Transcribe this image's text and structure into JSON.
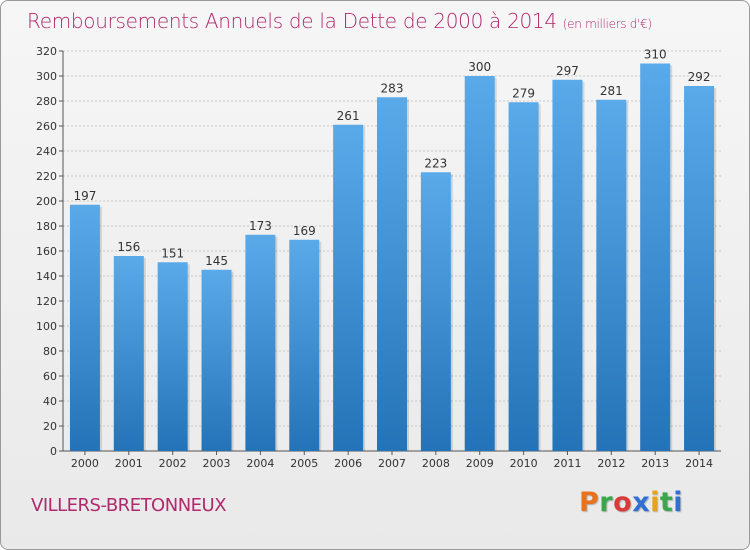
{
  "header": {
    "title": "Remboursements Annuels de la Dette de 2000 à 2014",
    "subtitle": "(en milliers d'€)"
  },
  "footer": {
    "commune": "VILLERS-BRETONNEUX",
    "logo_text": "Proxiti",
    "logo_colors": [
      "#e8731c",
      "#3aa84a",
      "#d93a3a",
      "#2f6fd6",
      "#e8a31c",
      "#3aa84a",
      "#2f6fd6"
    ]
  },
  "colors": {
    "title": "#b0296e",
    "bar_top": "#5aaaea",
    "bar_bottom": "#2473b8",
    "grid": "#c8c8c8"
  },
  "chart_data": {
    "type": "bar",
    "title": "Remboursements Annuels de la Dette de 2000 à 2014",
    "subtitle": "(en milliers d'€)",
    "xlabel": "",
    "ylabel": "",
    "categories": [
      "2000",
      "2001",
      "2002",
      "2003",
      "2004",
      "2005",
      "2006",
      "2007",
      "2008",
      "2009",
      "2010",
      "2011",
      "2012",
      "2013",
      "2014"
    ],
    "values": [
      197,
      156,
      151,
      145,
      173,
      169,
      261,
      283,
      223,
      300,
      279,
      297,
      281,
      310,
      292
    ],
    "ylim": [
      0,
      320
    ],
    "yticks": [
      0,
      20,
      40,
      60,
      80,
      100,
      120,
      140,
      160,
      180,
      200,
      220,
      240,
      260,
      280,
      300,
      320
    ],
    "grid": true,
    "legend": "none"
  }
}
